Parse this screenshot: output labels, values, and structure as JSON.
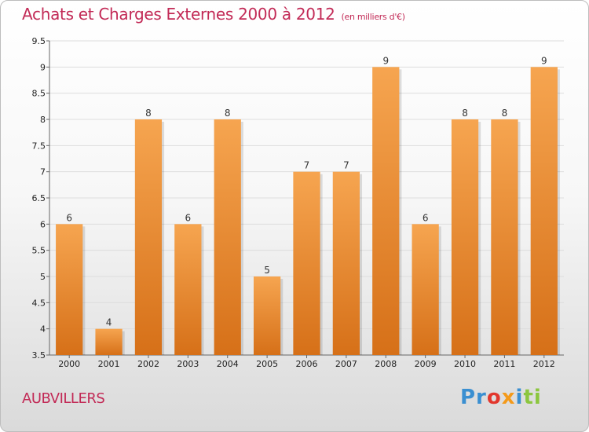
{
  "header": {
    "title": "Achats et Charges Externes 2000 à 2012",
    "unit": "(en milliers d'€)"
  },
  "footer": {
    "town": "AUBVILLERS",
    "logo": {
      "parts": [
        "Pr",
        "o",
        "x",
        "i",
        "ti"
      ]
    }
  },
  "colors": {
    "bar_top": "#f6a550",
    "bar_bottom": "#d67018",
    "title": "#c22a56",
    "grid": "#dddddd"
  },
  "chart_data": {
    "type": "bar",
    "categories": [
      "2000",
      "2001",
      "2002",
      "2003",
      "2004",
      "2005",
      "2006",
      "2007",
      "2008",
      "2009",
      "2010",
      "2011",
      "2012"
    ],
    "values": [
      6,
      4,
      8,
      6,
      8,
      5,
      7,
      7,
      9,
      6,
      8,
      8,
      9
    ],
    "title": "Achats et Charges Externes 2000 à 2012",
    "xlabel": "",
    "ylabel": "",
    "ylim": [
      3.5,
      9.5
    ],
    "yticks": [
      3.5,
      4,
      4.5,
      5,
      5.5,
      6,
      6.5,
      7,
      7.5,
      8,
      8.5,
      9,
      9.5
    ],
    "ytick_labels": [
      "3.5",
      "4",
      "4.5",
      "5",
      "5.5",
      "6",
      "6.5",
      "7",
      "7.5",
      "8",
      "8.5",
      "9",
      "9.5"
    ],
    "grid": true,
    "data_labels": true
  }
}
